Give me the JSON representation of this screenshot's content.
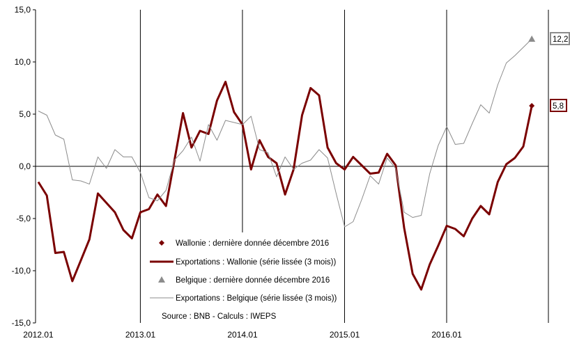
{
  "chart_data": {
    "type": "line",
    "ylim": [
      -15,
      15
    ],
    "y_ticks": [
      "15,0",
      "10,0",
      "5,0",
      "0,0",
      "-5,0",
      "-10,0",
      "-15,0"
    ],
    "y_tick_values": [
      15,
      10,
      5,
      0,
      -5,
      -10,
      -15
    ],
    "x_ticks": [
      "2012.01",
      "2013.01",
      "2014.01",
      "2015.01",
      "2016.01"
    ],
    "x_tick_positions": [
      0,
      12,
      24,
      36,
      48
    ],
    "x_range": [
      0,
      59
    ],
    "vertical_grid": true,
    "horizontal_grid": false,
    "legend_position": "bottom-center",
    "series": [
      {
        "name": "Exportations : Wallonie (série lissée (3 mois))",
        "color": "#7a0000",
        "values": [
          -1.5,
          -2.8,
          -8.3,
          -8.2,
          -11.0,
          -9.0,
          -7.0,
          -2.6,
          -3.5,
          -4.4,
          -6.1,
          -6.9,
          -4.4,
          -4.1,
          -2.7,
          -3.8,
          0.6,
          5.1,
          1.8,
          3.4,
          3.1,
          6.3,
          8.1,
          5.2,
          4.0,
          -0.3,
          2.5,
          0.9,
          0.3,
          -2.7,
          -0.3,
          4.9,
          7.5,
          6.8,
          1.8,
          0.3,
          -0.3,
          0.9,
          0.1,
          -0.7,
          -0.6,
          1.2,
          0.1,
          -5.9,
          -10.3,
          -11.8,
          -9.4,
          -7.6,
          -5.7,
          -6.0,
          -6.7,
          -5.0,
          -3.8,
          -4.6,
          -1.5,
          0.2,
          0.8,
          1.9,
          5.8
        ]
      },
      {
        "name": "Exportations : Belgique (série lissée (3 mois))",
        "color": "#8c8c8c",
        "values": [
          5.3,
          4.9,
          3.0,
          2.6,
          -1.3,
          -1.4,
          -1.7,
          0.9,
          -0.2,
          1.6,
          0.9,
          0.9,
          -0.6,
          -3.0,
          -3.3,
          -2.3,
          0.6,
          1.5,
          2.8,
          0.5,
          4.0,
          2.5,
          4.4,
          4.2,
          4.0,
          4.8,
          1.6,
          1.3,
          -1.0,
          0.9,
          -0.3,
          0.3,
          0.6,
          1.6,
          0.8,
          -2.6,
          -5.8,
          -5.3,
          -3.2,
          -0.9,
          -1.7,
          0.8,
          -0.2,
          -4.4,
          -4.9,
          -4.7,
          -0.7,
          2.0,
          3.8,
          2.1,
          2.2,
          4.1,
          5.9,
          5.1,
          7.8,
          9.9,
          10.6,
          11.4,
          12.2
        ]
      }
    ],
    "last_points": [
      {
        "name": "Wallonie : dernière donnée décembre 2016",
        "marker": "diamond",
        "color": "#7a0000",
        "x": 58,
        "y": 5.8,
        "label": "5,8"
      },
      {
        "name": "Belgique : dernière donnée décembre 2016",
        "marker": "triangle",
        "color": "#8c8c8c",
        "x": 58,
        "y": 12.2,
        "label": "12,2"
      }
    ],
    "legend": [
      {
        "label": "Wallonie : dernière donnée décembre 2016",
        "kind": "diamond",
        "color": "#7a0000"
      },
      {
        "label": "Exportations : Wallonie (série lissée (3 mois))",
        "kind": "line-thick",
        "color": "#7a0000"
      },
      {
        "label": "Belgique : dernière donnée décembre 2016",
        "kind": "triangle",
        "color": "#8c8c8c"
      },
      {
        "label": "Exportations : Belgique (série lissée (3 mois))",
        "kind": "line-thin",
        "color": "#8c8c8c"
      }
    ],
    "source": "Source : BNB - Calculs : IWEPS"
  }
}
